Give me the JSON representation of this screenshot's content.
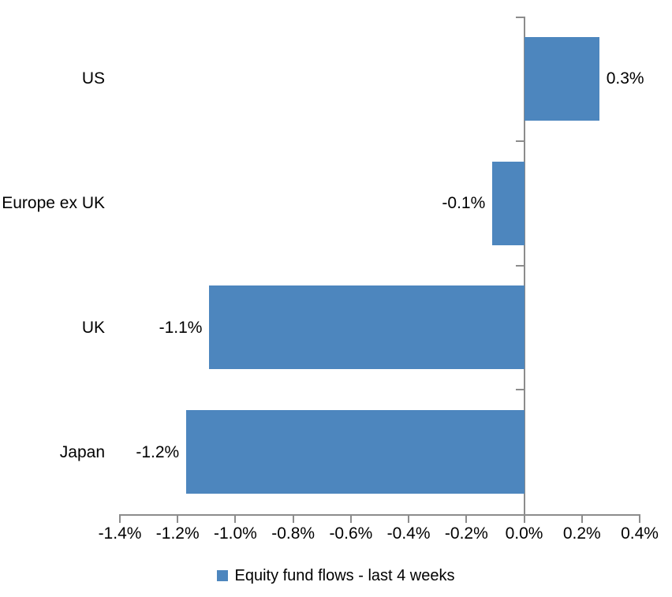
{
  "chart_data": {
    "type": "bar",
    "orientation": "horizontal",
    "title": "",
    "xlabel": "",
    "ylabel": "",
    "grid": false,
    "categories": [
      "US",
      "Europe ex UK",
      "UK",
      "Japan"
    ],
    "series": [
      {
        "name": "Equity fund flows - last 4 weeks",
        "color": "#4D86BE",
        "points": [
          {
            "category": "US",
            "value": 0.3,
            "bar_extent": 0.26,
            "label": "0.3%"
          },
          {
            "category": "Europe ex UK",
            "value": -0.1,
            "bar_extent": -0.11,
            "label": "-0.1%"
          },
          {
            "category": "UK",
            "value": -1.1,
            "bar_extent": -1.09,
            "label": "-1.1%"
          },
          {
            "category": "Japan",
            "value": -1.2,
            "bar_extent": -1.17,
            "label": "-1.2%"
          }
        ]
      }
    ],
    "x_axis": {
      "min": -1.4,
      "max": 0.4,
      "step": 0.2,
      "format": "percent",
      "tick_labels": [
        "-1.4%",
        "-1.2%",
        "-1.0%",
        "-0.8%",
        "-0.6%",
        "-0.4%",
        "-0.2%",
        "0.0%",
        "0.2%",
        "0.4%"
      ]
    },
    "legend": {
      "position": "bottom",
      "entries": [
        {
          "label": "Equity fund flows - last 4 weeks",
          "swatch_color": "#4D86BE"
        }
      ]
    },
    "colors": {
      "bar": "#4D86BE",
      "axis": "#8C8C8C",
      "text": "#000000",
      "background": "#FFFFFF"
    }
  }
}
